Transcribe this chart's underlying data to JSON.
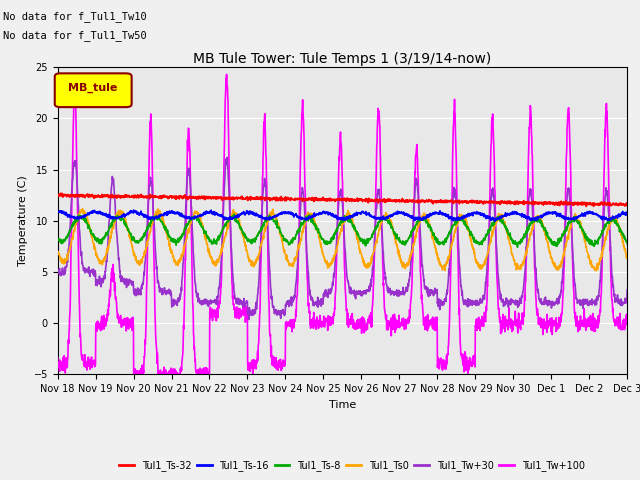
{
  "title": "MB Tule Tower: Tule Temps 1 (3/19/14-now)",
  "xlabel": "Time",
  "ylabel": "Temperature (C)",
  "ylim": [
    -5,
    25
  ],
  "yticks": [
    -5,
    0,
    5,
    10,
    15,
    20,
    25
  ],
  "annotation_lines": [
    "No data for f_Tul1_Tw10",
    "No data for f_Tul1_Tw50"
  ],
  "legend_box_label": "MB_tule",
  "legend_box_color": "#ffff00",
  "legend_box_border": "#8B0000",
  "legend_box_text_color": "#8B0000",
  "x_tick_labels": [
    "Nov 18",
    "Nov 19",
    "Nov 20",
    "Nov 21",
    "Nov 22",
    "Nov 23",
    "Nov 24",
    "Nov 25",
    "Nov 26",
    "Nov 27",
    "Nov 28",
    "Nov 29",
    "Nov 30",
    "Dec 1",
    "Dec 2",
    "Dec 3"
  ],
  "series": {
    "Tul1_Ts-32": {
      "color": "#ff0000",
      "lw": 1.2
    },
    "Tul1_Ts-16": {
      "color": "#0000ff",
      "lw": 1.2
    },
    "Tul1_Ts-8": {
      "color": "#00aa00",
      "lw": 1.2
    },
    "Tul1_Ts0": {
      "color": "#ffa500",
      "lw": 1.2
    },
    "Tul1_Tw+30": {
      "color": "#9932cc",
      "lw": 1.2
    },
    "Tul1_Tw+100": {
      "color": "#ff00ff",
      "lw": 1.2
    }
  },
  "background_color": "#f0f0f0",
  "plot_bg_color": "#e8e8e8"
}
